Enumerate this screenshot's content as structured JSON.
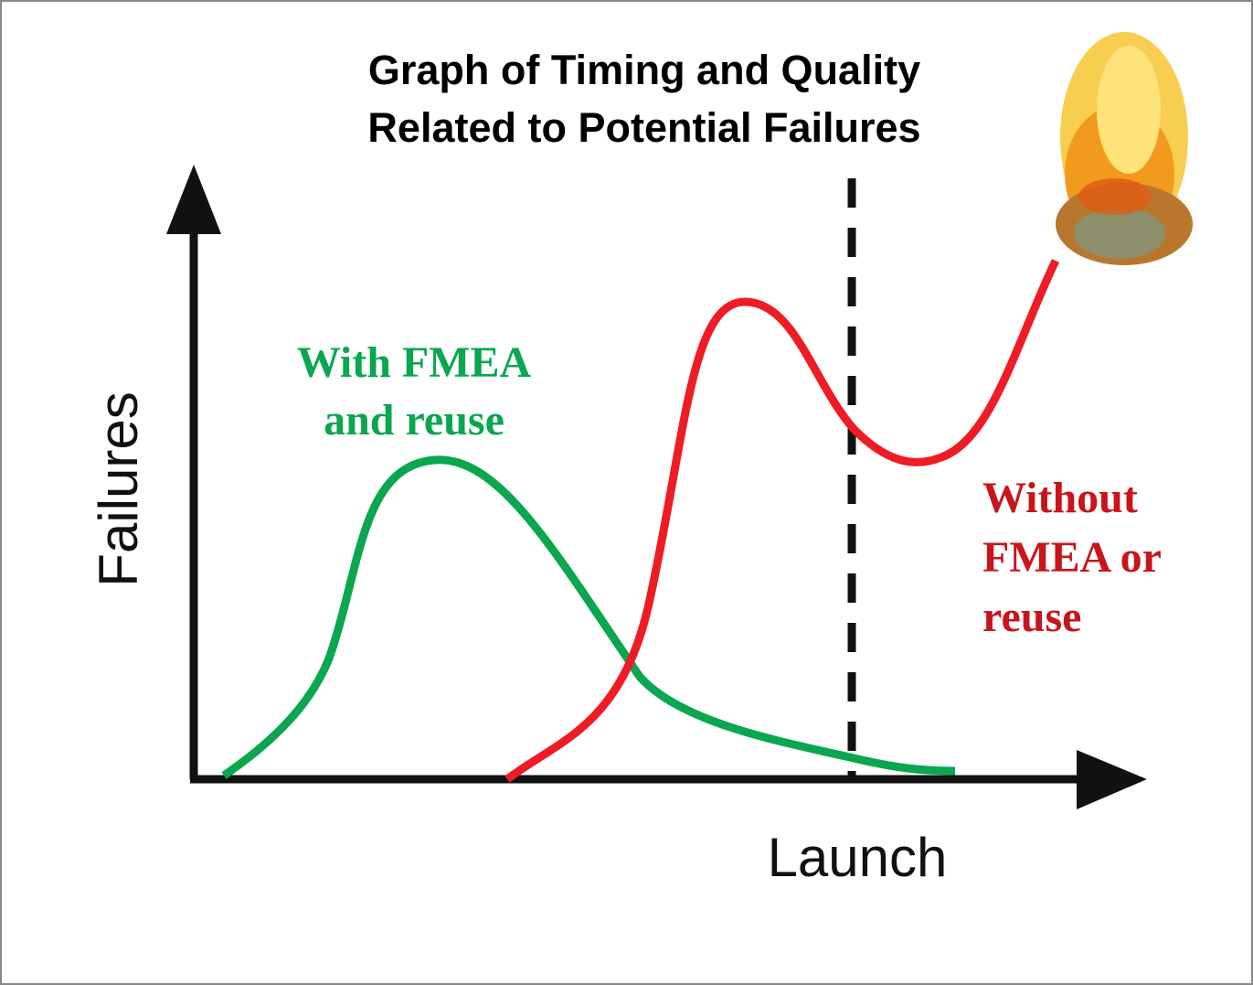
{
  "title": {
    "lines": [
      "Graph of Timing and Quality",
      "Related to Potential Failures"
    ]
  },
  "y_axis_label": "Failures",
  "x_axis_label": "Launch",
  "with_label": {
    "lines": [
      "With FMEA",
      "and reuse"
    ]
  },
  "without_label": {
    "lines": [
      "Without",
      "FMEA or",
      "reuse"
    ]
  }
}
